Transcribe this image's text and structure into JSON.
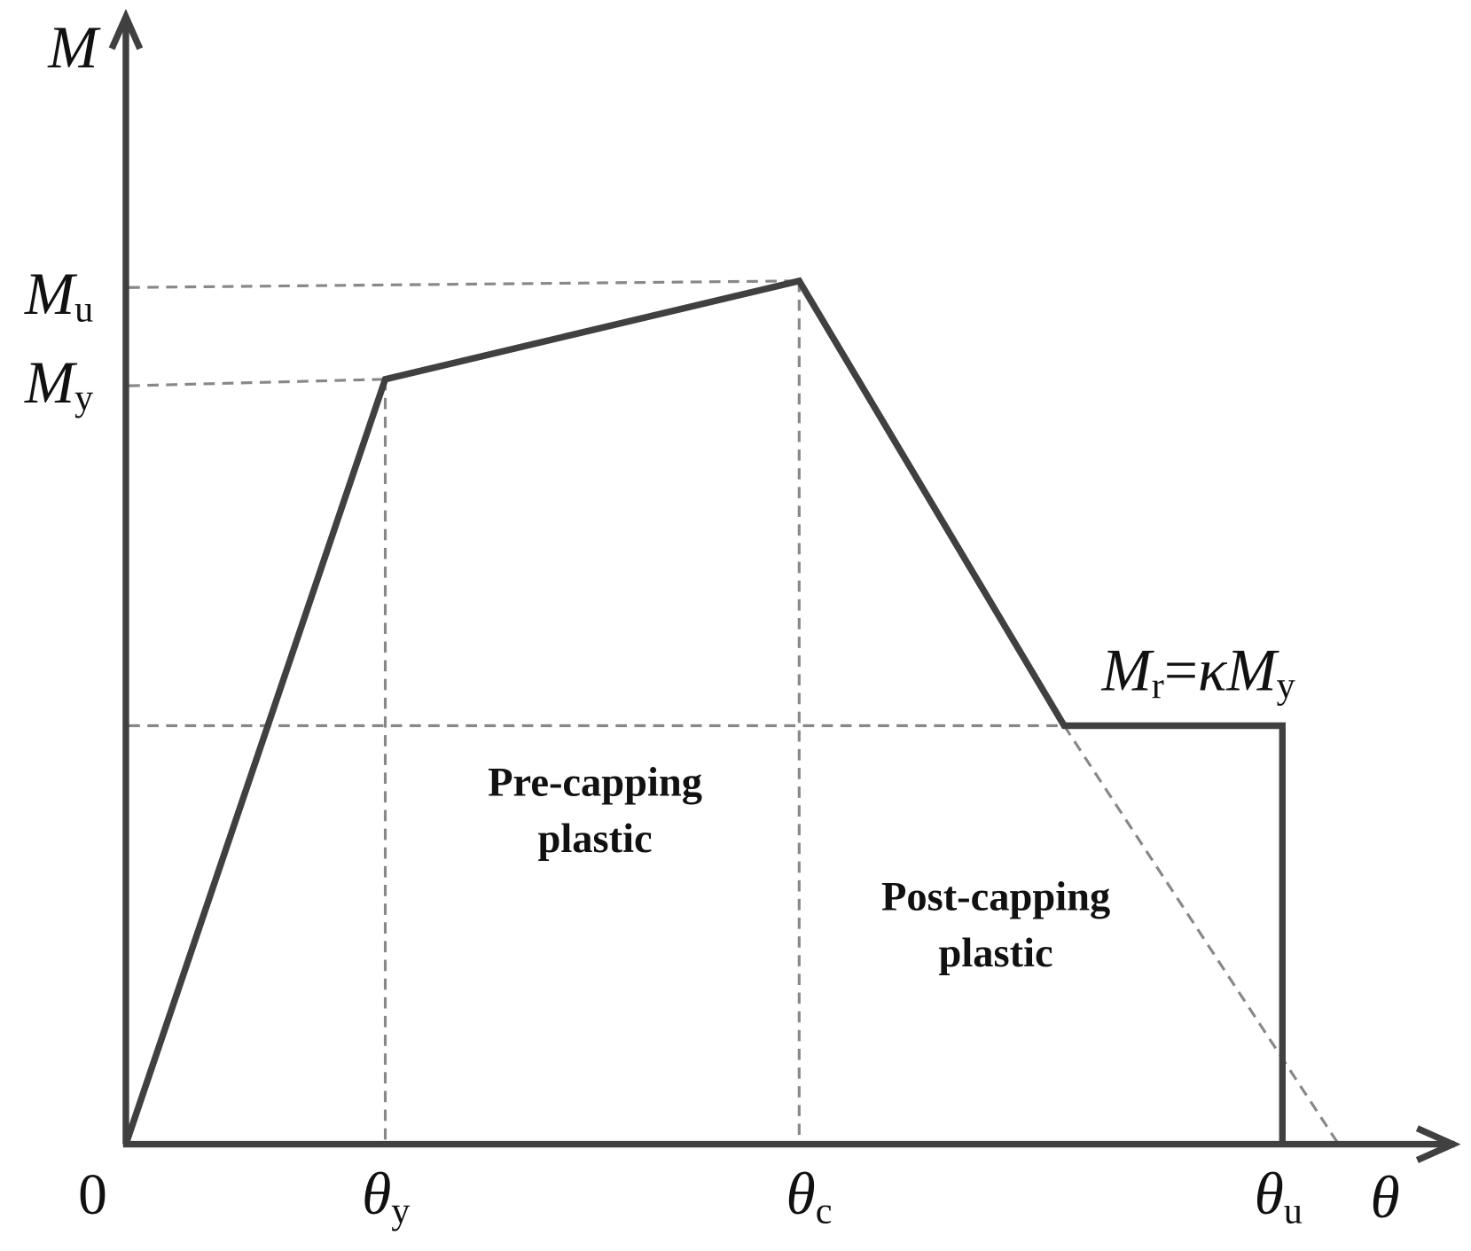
{
  "axes": {
    "y_label": "M",
    "x_label": "θ",
    "origin": "0"
  },
  "y_axis_labels": [
    {
      "symbol": "M",
      "subscript": "u"
    },
    {
      "symbol": "M",
      "subscript": "y"
    }
  ],
  "x_axis_labels": [
    {
      "symbol": "θ",
      "subscript": "y"
    },
    {
      "symbol": "θ",
      "subscript": "c"
    },
    {
      "symbol": "θ",
      "subscript": "u"
    }
  ],
  "residual_label": {
    "lhs": "M",
    "lhs_sub": "r",
    "relation": "=",
    "factor": "κ",
    "rhs": "M",
    "rhs_sub": "y"
  },
  "regions": [
    {
      "lines": [
        "Pre-capping",
        "plastic"
      ]
    },
    {
      "lines": [
        "Post-capping",
        "plastic"
      ]
    }
  ]
}
